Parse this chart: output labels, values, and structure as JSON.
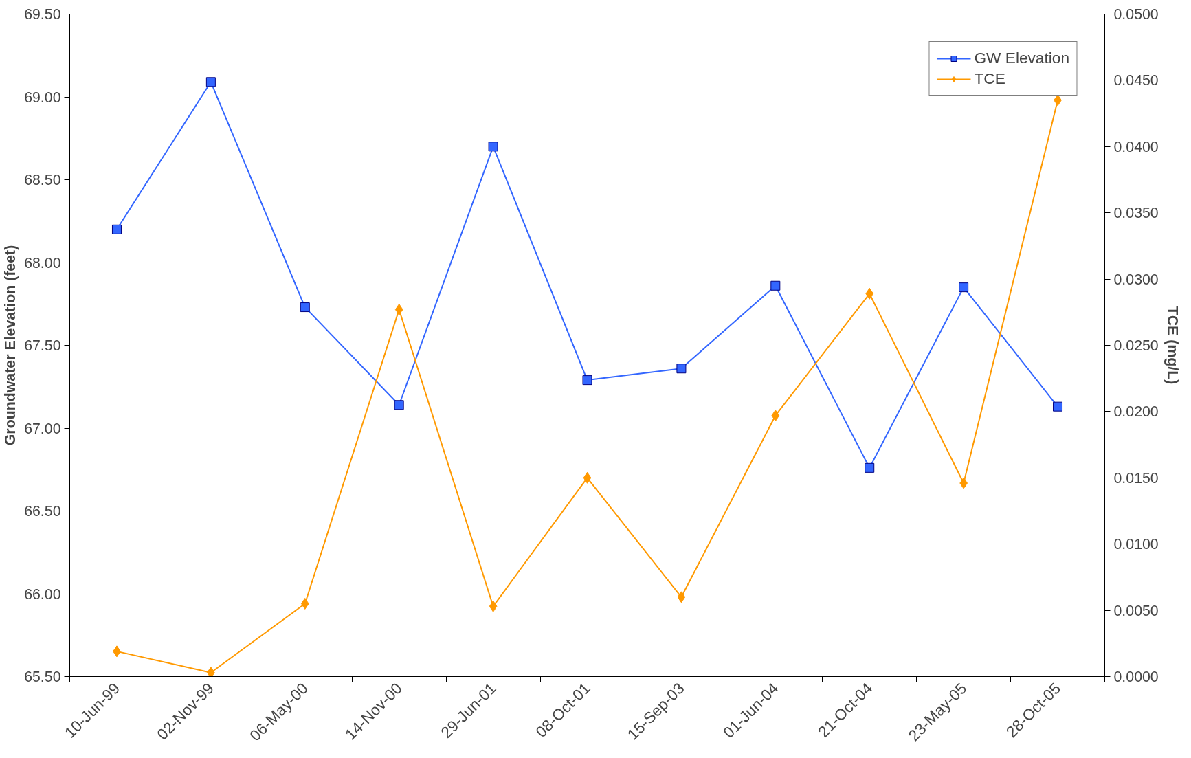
{
  "chart_data": {
    "type": "line",
    "ylabel": "Groundwater Elevation (feet)",
    "y2label": "TCE (mg/L)",
    "categories": [
      "10-Jun-99",
      "02-Nov-99",
      "06-May-00",
      "14-Nov-00",
      "29-Jun-01",
      "08-Oct-01",
      "15-Sep-03",
      "01-Jun-04",
      "21-Oct-04",
      "23-May-05",
      "28-Oct-05"
    ],
    "series": [
      {
        "name": "GW Elevation",
        "color": "#3366ff",
        "marker": "square",
        "values": [
          68.2,
          69.09,
          67.73,
          67.14,
          68.7,
          67.29,
          67.36,
          67.86,
          66.76,
          67.85,
          67.13
        ]
      },
      {
        "name": "TCE",
        "color": "#ff9900",
        "marker": "diamond",
        "axis": "y2",
        "values": [
          0.0019,
          0.0003,
          0.0055,
          0.0277,
          0.0053,
          0.015,
          0.006,
          0.0197,
          0.0289,
          0.0146,
          0.0435
        ]
      }
    ],
    "ylim": [
      65.5,
      69.5
    ],
    "yticks": [
      {
        "value": 65.5,
        "label": "65.50"
      },
      {
        "value": 66,
        "label": "66.00"
      },
      {
        "value": 66.5,
        "label": "66.50"
      },
      {
        "value": 67,
        "label": "67.00"
      },
      {
        "value": 67.5,
        "label": "67.50"
      },
      {
        "value": 68,
        "label": "68.00"
      },
      {
        "value": 68.5,
        "label": "68.50"
      },
      {
        "value": 69,
        "label": "69.00"
      },
      {
        "value": 69.5,
        "label": "69.50"
      }
    ],
    "y2lim": [
      0,
      0.05
    ],
    "y2ticks": [
      {
        "value": 0,
        "label": "0.0000"
      },
      {
        "value": 0.005,
        "label": "0.0050"
      },
      {
        "value": 0.01,
        "label": "0.0100"
      },
      {
        "value": 0.015,
        "label": "0.0150"
      },
      {
        "value": 0.02,
        "label": "0.0200"
      },
      {
        "value": 0.025,
        "label": "0.0250"
      },
      {
        "value": 0.03,
        "label": "0.0300"
      },
      {
        "value": 0.035,
        "label": "0.0350"
      },
      {
        "value": 0.04,
        "label": "0.0400"
      },
      {
        "value": 0.045,
        "label": "0.0450"
      },
      {
        "value": 0.05,
        "label": "0.0500"
      }
    ],
    "legend": "top right",
    "line_style": "solid",
    "grid": false
  }
}
